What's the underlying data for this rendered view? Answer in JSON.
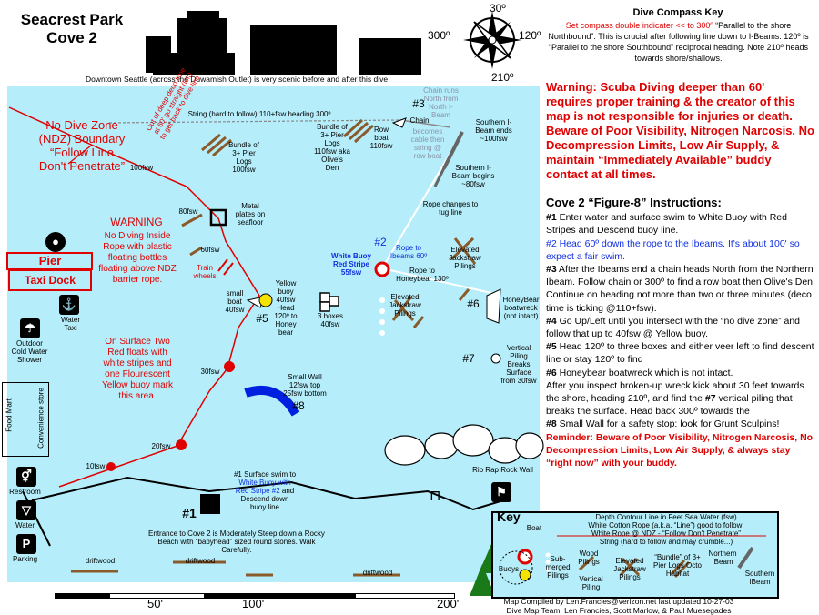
{
  "header": {
    "title": "Seacrest Park Cove 2",
    "seattle_note": "Downtown Seattle (across the Duwamish Outlet) is very scenic before and after this dive"
  },
  "compass": {
    "title": "Dive Compass Key",
    "line_red": "Set compass double indicater << to 300º",
    "line_rest": "“Parallel to the shore Northbound”. This is crucial after following line down to I-Beams. 120º is “Parallel to the shore Southbound” reciprocal heading. Note 210º heads towards shore/shallows.",
    "deg_30": "30º",
    "deg_120": "120º",
    "deg_210": "210º",
    "deg_300": "300º"
  },
  "warning": "Warning: Scuba Diving deeper than 60' requires proper training & the creator of this map is not responsible for injuries or death. Beware of Poor Visibility, Nitrogen Narcosis, No Decompression Limits, Low Air Supply, & maintain “Immediately Available” buddy contact at all times.",
  "instructions": {
    "heading": "Cove 2 “Figure-8” Instructions:",
    "s1_num": "#1",
    "s1": " Enter water and surface swim to White Buoy with Red Stripes and Descend buoy line.",
    "s2": "#2 Head 60º down the rope to the Ibeams. It's about 100' so expect a fair swim.",
    "s3_num": "#3",
    "s3": " After the Ibeams end a chain heads North from the Northern Ibeam. Follow chain or 300º to find a row boat then Olive's Den. Continue on heading not more than two or three minutes (deco time is ticking @110+fsw).",
    "s4_num": "#4",
    "s4": " Go Up/Left until you intersect with the “no dive zone” and follow that up to 40fsw @ Yellow buoy.",
    "s5_num": "#5",
    "s5": " Head 120º to three boxes and either veer left to find descent line or stay 120º to find",
    "s6_num": "#6",
    "s6": " Honeybear boatwreck which is not intact.",
    "s6b_pre": "After you inspect broken-up wreck kick about 30 feet towards the shore, heading 210º, and find the ",
    "s7_num": "#7",
    "s6b_post": " vertical piling that breaks the surface. Head back 300º towards the",
    "s8_num": "#8",
    "s8": " Small Wall for a safety stop: look for Grunt Sculpins!",
    "reminder": "Reminder: Beware of Poor Visibility, Nitrogen Narcosis, No Decompression Limits, Low Air Supply, & always stay “right now” with your buddy."
  },
  "map": {
    "no_dive_zone": "No Dive Zone (NDZ) Boundary “Follow Line Don't Penetrate”",
    "warning_title": "WARNING",
    "warning_body": "No Diving Inside Rope with plastic floating bottles floating above NDZ barrier rope.",
    "surface_note": "On Surface Two Red floats with white stripes and one Flourescent Yellow buoy mark this area.",
    "pier": "Pier",
    "taxi_dock": "Taxi Dock",
    "deco_note": "Out of deep deco time at 60' go straight (left) to get back to dive line",
    "string_label": "String (hard to follow) 110+fsw heading 300º",
    "bundle1": "Bundle of 3+ Pier Logs 100fsw",
    "bundle2": "Bundle of 3+ Pier Logs 110fsw aka Olive's Den",
    "row_boat": "Row boat 110fsw",
    "n3": "#3",
    "chain": "Chain",
    "chain_runs": "Chain runs North from North I-Beam",
    "chain_cable": "becomes cable then string @ row boat",
    "s_ibeam_end": "Southern I-Beam ends ~100fsw",
    "s_ibeam_begin": "Southern I-Beam begins ~80fsw",
    "rope_tug": "Rope changes to tug line",
    "metal_plates": "Metal plates on seafloor",
    "d100": "100fsw",
    "d80": "80fsw",
    "d60": "60fsw",
    "d40": "40fsw",
    "d30": "30fsw",
    "d20": "20fsw",
    "d10": "10fsw",
    "train_wheels": "Train wheels",
    "small_boat": "small boat 40fsw",
    "yellow_buoy": "Yellow buoy 40fsw Head 120º to Honey bear",
    "n5": "#5",
    "three_boxes": "3 boxes 40fsw",
    "white_buoy": "White Buoy Red Stripe 55fsw",
    "n2": "#2",
    "rope_ibeams": "Rope to Ibeams 60º",
    "rope_honeybear": "Rope to Honeybear 130º",
    "jack1": "Elevated Jackstraw Pilings",
    "jack2": "Elevated Jackstraw Pilings",
    "n6": "#6",
    "honeybear": "HoneyBear boatwreck (not intact)",
    "n7": "#7",
    "vertical_piling": "Vertical Piling Breaks Surface from 30fsw",
    "small_wall": "Small Wall 12fsw top 25fsw bottom",
    "n8": "#8",
    "rip_rap": "Rip Rap Rock Wall",
    "n1": "#1",
    "surface_swim_pre": "#1 Surface swim to",
    "surface_swim_blue": "White Buoy with Red Stripe",
    "surface_swim_blue2": "#2",
    "surface_swim_post": "and Descend down buoy line",
    "entrance": "Entrance to Cove 2 is Moderately Steep down a Rocky Beach with “babyhead” sized round stones. Walk Carefully.",
    "driftwood": "driftwood",
    "water_taxi": "Water Taxi",
    "outdoor_shower": "Outdoor Cold Water Shower",
    "food_mart": "Food Mart",
    "convenience": "Convenience store",
    "restroom": "Restroom",
    "water": "Water",
    "parking": "Parking"
  },
  "key": {
    "title": "Key",
    "boat": "Boat",
    "contour": "Depth Contour Line in Feet Sea Water (fsw)",
    "white_rope": "White Cotton Rope (a.k.a. “Line”) good to follow!",
    "ndz_rope": "White Rope @ NDZ - “Follow Don't Penetrate”",
    "string": "String (hard to follow and may crumble...)",
    "buoys": "Buoys",
    "submerged": "Sub-merged Pilings",
    "wood": "Wood Pilings",
    "vertical": "Vertical Piling",
    "elevated": "Elevated Jackstraw Pilings",
    "bundle": "“Bundle” of 3+ Pier Logs Octo Habitat",
    "northern": "Northern IBeam",
    "southern": "Southern IBeam"
  },
  "scale": {
    "s50": "50'",
    "s100": "100'",
    "s200": "200'"
  },
  "credits": {
    "line1": "Map Compiled by Len.Francies@verizon.net last updated 10-27-03",
    "line2": "Dive Map Team: Len Francies, Scott Marlow, & Paul Muesegades"
  },
  "colors": {
    "water": "#b5eefa",
    "red": "#e00000",
    "blue": "#1030e0",
    "wall_blue": "#0020e0",
    "yellow": "#f5e400",
    "wood": "#8b5a2b"
  }
}
